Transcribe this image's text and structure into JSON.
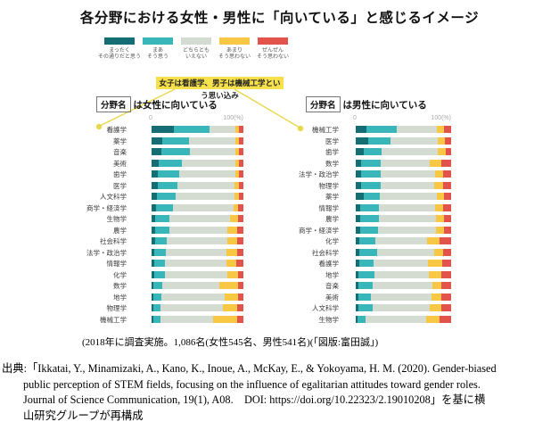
{
  "title": "各分野における女性・男性に「向いている」と感じるイメージ",
  "legend": {
    "items": [
      {
        "line1": "まったく",
        "line2": "その通りだと思う",
        "color": "#156e73"
      },
      {
        "line1": "まあ",
        "line2": "そう思う",
        "color": "#39b6b9"
      },
      {
        "line1": "どちらとも",
        "line2": "いえない",
        "color": "#d4dbd0"
      },
      {
        "line1": "あまり",
        "line2": "そう思わない",
        "color": "#f8c845"
      },
      {
        "line1": "ぜんぜん",
        "line2": "そう思わない",
        "color": "#e2544b"
      }
    ]
  },
  "callout": {
    "text": "女子は看護学、男子は機械工学という思い込み",
    "bg": "#f6e04b",
    "line_color": "#e9d84e"
  },
  "chart_data": {
    "type": "bar",
    "stacked": true,
    "orientation": "horizontal",
    "unit": "%",
    "xlim": [
      0,
      100
    ],
    "grid": false,
    "legend_position": "top",
    "legend_labels": [
      "まったくその通りだと思う",
      "まあそう思う",
      "どちらともいえない",
      "あまりそう思わない",
      "ぜんぜんそう思わない"
    ],
    "colors": [
      "#156e73",
      "#39b6b9",
      "#d4dbd0",
      "#f8c845",
      "#e2544b"
    ],
    "axis": {
      "left_label": "0",
      "right_label": "100(%)"
    },
    "charts": [
      {
        "header_box": "分野名",
        "header_text": "は女性に向いている",
        "categories": [
          "看護学",
          "薬学",
          "音楽",
          "美術",
          "歯学",
          "医学",
          "人文科学",
          "商学・経済学",
          "生物学",
          "農学",
          "社会科学",
          "法学・政治学",
          "情報学",
          "化学",
          "数学",
          "地学",
          "物理学",
          "機械工学"
        ],
        "values": [
          [
            24,
            39,
            28,
            4,
            5
          ],
          [
            12,
            29,
            50,
            4,
            5
          ],
          [
            11,
            31,
            49,
            4,
            5
          ],
          [
            8,
            25,
            58,
            4,
            5
          ],
          [
            7,
            23,
            61,
            4,
            5
          ],
          [
            7,
            21,
            62,
            5,
            5
          ],
          [
            6,
            20,
            64,
            5,
            5
          ],
          [
            5,
            18,
            66,
            5,
            6
          ],
          [
            4,
            15,
            66,
            9,
            6
          ],
          [
            4,
            15,
            64,
            10,
            7
          ],
          [
            4,
            13,
            66,
            10,
            7
          ],
          [
            3,
            13,
            66,
            11,
            7
          ],
          [
            3,
            12,
            67,
            10,
            8
          ],
          [
            3,
            12,
            68,
            11,
            6
          ],
          [
            2,
            10,
            62,
            20,
            6
          ],
          [
            2,
            9,
            69,
            14,
            6
          ],
          [
            2,
            8,
            68,
            15,
            7
          ],
          [
            2,
            8,
            57,
            26,
            7
          ]
        ]
      },
      {
        "header_box": "分野名",
        "header_text": "は男性に向いている",
        "categories": [
          "機械工学",
          "医学",
          "歯学",
          "数学",
          "法学・政治学",
          "物理学",
          "薬学",
          "情報学",
          "農学",
          "商学・経済学",
          "化学",
          "社会科学",
          "看護学",
          "地学",
          "音楽",
          "美術",
          "人文科学",
          "生物学"
        ],
        "values": [
          [
            11,
            32,
            42,
            8,
            7
          ],
          [
            13,
            23,
            50,
            7,
            7
          ],
          [
            8,
            19,
            59,
            8,
            6
          ],
          [
            6,
            20,
            52,
            12,
            10
          ],
          [
            6,
            20,
            57,
            9,
            8
          ],
          [
            6,
            20,
            56,
            10,
            8
          ],
          [
            8,
            17,
            60,
            8,
            7
          ],
          [
            5,
            19,
            59,
            9,
            8
          ],
          [
            5,
            19,
            60,
            9,
            7
          ],
          [
            5,
            18,
            61,
            9,
            7
          ],
          [
            4,
            17,
            54,
            13,
            12
          ],
          [
            4,
            18,
            60,
            10,
            8
          ],
          [
            4,
            15,
            57,
            15,
            9
          ],
          [
            3,
            17,
            57,
            13,
            10
          ],
          [
            3,
            15,
            62,
            10,
            10
          ],
          [
            3,
            13,
            63,
            11,
            10
          ],
          [
            3,
            15,
            60,
            12,
            10
          ],
          [
            2,
            8,
            64,
            14,
            12
          ]
        ]
      }
    ]
  },
  "caption": "(2018年に調査実施。1,086名(女性545名、男性541名)(「図版:富田誠」)",
  "source": {
    "lines": [
      "出典:「Ikkatai, Y., Minamizaki, A., Kano, K., Inoue, A., McKay, E., & Yokoyama, H. M. (2020). Gender-biased",
      "public perception of STEM fields, focusing on the influence of egalitarian attitudes toward gender roles.",
      "Journal of Science Communication, 19(1), A08.    DOI: https://doi.org/10.22323/2.19010208」を基に横",
      "山研究グループが再構成"
    ]
  }
}
